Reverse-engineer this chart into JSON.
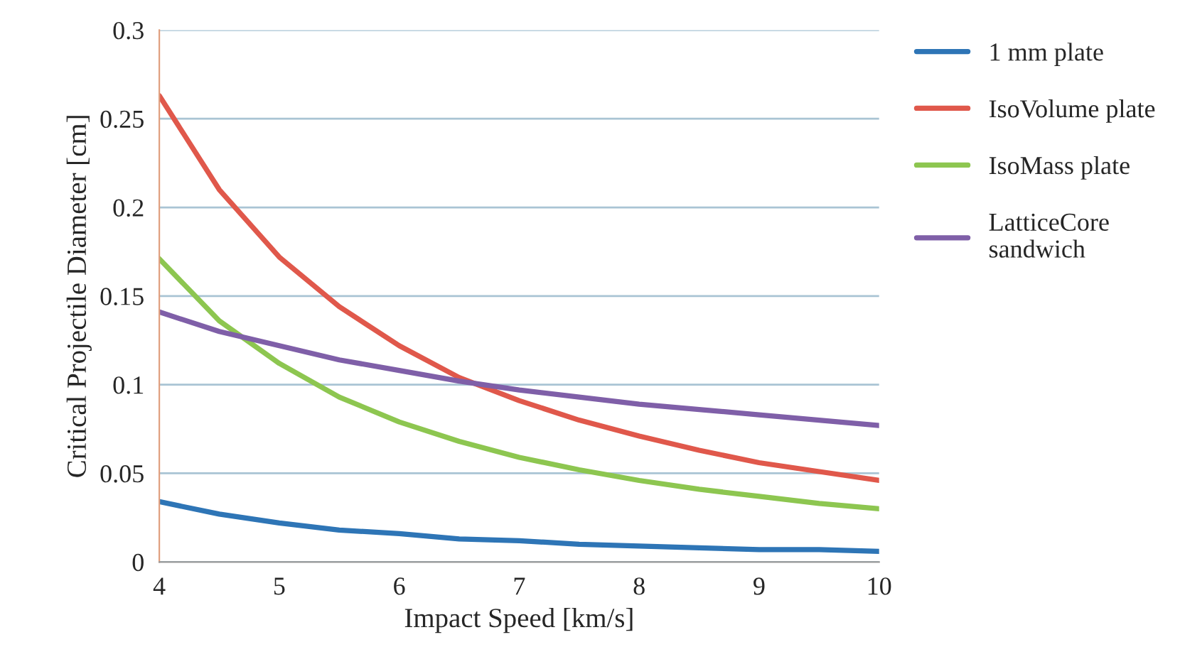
{
  "chart_data": {
    "type": "line",
    "xlabel": "Impact Speed [km/s]",
    "ylabel": "Critical Projectile Diameter [cm]",
    "x": [
      4,
      4.5,
      5,
      5.5,
      6,
      6.5,
      7,
      7.5,
      8,
      8.5,
      9,
      9.5,
      10
    ],
    "series": [
      {
        "name": "1 mm plate",
        "color": "#2e75b6",
        "values": [
          0.034,
          0.027,
          0.022,
          0.018,
          0.016,
          0.013,
          0.012,
          0.01,
          0.009,
          0.008,
          0.007,
          0.007,
          0.006
        ]
      },
      {
        "name": "IsoVolume plate",
        "color": "#e0584b",
        "values": [
          0.263,
          0.21,
          0.172,
          0.144,
          0.122,
          0.104,
          0.091,
          0.08,
          0.071,
          0.063,
          0.056,
          0.051,
          0.046
        ]
      },
      {
        "name": "IsoMass plate",
        "color": "#8dc650",
        "values": [
          0.171,
          0.136,
          0.112,
          0.093,
          0.079,
          0.068,
          0.059,
          0.052,
          0.046,
          0.041,
          0.037,
          0.033,
          0.03
        ]
      },
      {
        "name": "LatticeCore\nsandwich",
        "color": "#7f5fa8",
        "values": [
          0.141,
          0.13,
          0.122,
          0.114,
          0.108,
          0.102,
          0.097,
          0.093,
          0.089,
          0.086,
          0.083,
          0.08,
          0.077
        ]
      }
    ],
    "xlim": [
      4,
      10
    ],
    "xticks": [
      4,
      5,
      6,
      7,
      8,
      9,
      10
    ],
    "ylim": [
      0,
      0.3
    ],
    "yticks": [
      0,
      0.05,
      0.1,
      0.15,
      0.2,
      0.25,
      0.3
    ],
    "grid": "y",
    "legend": "right",
    "marker": "none",
    "line_style": "solid"
  }
}
